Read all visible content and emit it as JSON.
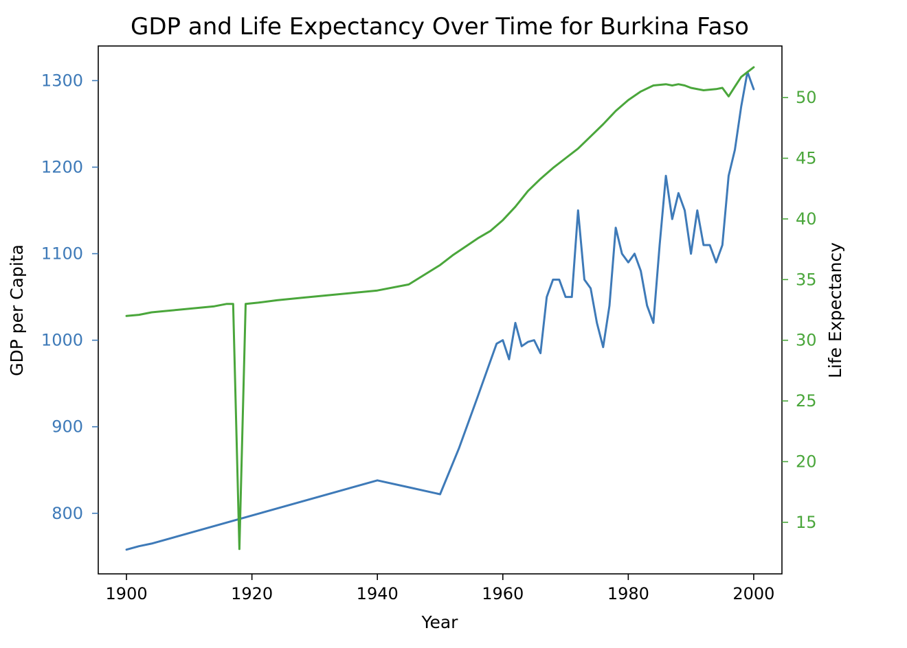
{
  "chart_data": {
    "type": "line",
    "title": "GDP and Life Expectancy Over Time for Burkina Faso",
    "xlabel": "Year",
    "xlim": [
      1895.5,
      2004.5
    ],
    "xticks": [
      1900,
      1920,
      1940,
      1960,
      1980,
      2000
    ],
    "grid": false,
    "legend": "none",
    "left_axis": {
      "label": "GDP per Capita",
      "color": "#3e7ab8",
      "ylim": [
        730,
        1340
      ],
      "ticks": [
        800,
        900,
        1000,
        1100,
        1200,
        1300
      ]
    },
    "right_axis": {
      "label": "Life Expectancy",
      "color": "#4aa63b",
      "ylim": [
        10.75,
        54.25
      ],
      "ticks": [
        15,
        20,
        25,
        30,
        35,
        40,
        45,
        50
      ]
    },
    "series": [
      {
        "axis": "left",
        "color": "#3e7ab8",
        "x": [
          1900,
          1902,
          1904,
          1940,
          1945,
          1950,
          1953,
          1956,
          1959,
          1960,
          1961,
          1962,
          1963,
          1964,
          1965,
          1966,
          1967,
          1968,
          1969,
          1970,
          1971,
          1972,
          1973,
          1974,
          1975,
          1976,
          1977,
          1978,
          1979,
          1980,
          1981,
          1982,
          1983,
          1984,
          1985,
          1986,
          1987,
          1988,
          1989,
          1990,
          1991,
          1992,
          1993,
          1994,
          1995,
          1996,
          1997,
          1998,
          1999,
          2000
        ],
        "y": [
          758,
          762,
          765,
          838,
          830,
          822,
          875,
          935,
          996,
          1000,
          978,
          1020,
          993,
          998,
          1000,
          985,
          1050,
          1070,
          1070,
          1050,
          1050,
          1150,
          1070,
          1060,
          1020,
          992,
          1040,
          1130,
          1100,
          1090,
          1100,
          1080,
          1040,
          1020,
          1110,
          1190,
          1140,
          1170,
          1150,
          1100,
          1150,
          1110,
          1110,
          1090,
          1110,
          1190,
          1220,
          1270,
          1310,
          1290
        ]
      },
      {
        "axis": "right",
        "color": "#4aa63b",
        "x": [
          1900,
          1902,
          1904,
          1906,
          1908,
          1910,
          1912,
          1914,
          1916,
          1917,
          1918,
          1919,
          1921,
          1924,
          1928,
          1932,
          1936,
          1940,
          1945,
          1950,
          1952,
          1954,
          1956,
          1958,
          1960,
          1962,
          1964,
          1966,
          1968,
          1970,
          1972,
          1974,
          1976,
          1978,
          1980,
          1982,
          1984,
          1986,
          1987,
          1988,
          1989,
          1990,
          1992,
          1994,
          1995,
          1996,
          1997,
          1998,
          2000
        ],
        "y": [
          32.0,
          32.1,
          32.3,
          32.4,
          32.5,
          32.6,
          32.7,
          32.8,
          33.0,
          33.0,
          12.8,
          33.0,
          33.1,
          33.3,
          33.5,
          33.7,
          33.9,
          34.1,
          34.6,
          36.2,
          37.0,
          37.7,
          38.4,
          39.0,
          39.9,
          41.0,
          42.3,
          43.3,
          44.2,
          45.0,
          45.8,
          46.8,
          47.8,
          48.9,
          49.8,
          50.5,
          51.0,
          51.1,
          51.0,
          51.1,
          51.0,
          50.8,
          50.6,
          50.7,
          50.8,
          50.1,
          50.9,
          51.7,
          52.5
        ]
      }
    ]
  }
}
